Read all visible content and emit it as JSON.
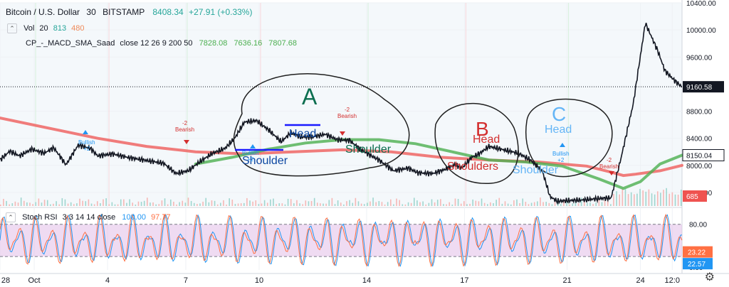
{
  "header": {
    "title": "Bitcoin / U.S. Dollar",
    "interval": "30",
    "exchange": "BITSTAMP",
    "price": "8408.34",
    "change": "+27.91 (+0.33%)"
  },
  "volume_legend": {
    "label": "Vol",
    "period": "20",
    "v1": "813",
    "v2": "480"
  },
  "macd_legend": {
    "label": "CP_-_MACD_SMA_Saad",
    "params": "close 12 26 9 200 50",
    "v1": "7828.08",
    "v2": "7636.16",
    "v3": "7807.68"
  },
  "stoch_legend": {
    "label": "Stoch RSI",
    "params": "3 3 14 14 close",
    "k": "100.00",
    "d": "97.77"
  },
  "colors": {
    "price": "#131722",
    "green_ma": "#4caf50",
    "red_ma": "#ef5350",
    "rsi_k": "#2196f3",
    "rsi_d": "#ff7043",
    "band": "#e1bee7",
    "annot_blue": "#2196f3",
    "annot_red": "#d32f2f",
    "annot_green": "#0b6e4f"
  },
  "chart_data": {
    "type": "line",
    "x_ticks": [
      "28",
      "Oct",
      "4",
      "7",
      "10",
      "14",
      "17",
      "21",
      "24",
      "12:0"
    ],
    "y_ticks": [
      "10400.00",
      "10000.00",
      "9600.00",
      "8800.00",
      "8400.00",
      "8000.00",
      "7600.00"
    ],
    "price_badges": [
      "9160.58",
      "8150.04",
      "685"
    ],
    "ylim": [
      7400,
      10400
    ],
    "price_series": {
      "x": [
        0,
        4,
        8,
        13,
        18,
        22,
        27,
        32,
        37,
        40,
        46,
        52,
        57,
        62,
        67,
        72,
        77,
        82,
        87,
        92,
        96,
        100,
        105,
        110,
        115,
        119,
        123,
        128,
        133,
        138,
        143,
        147,
        150,
        155,
        161,
        167,
        171,
        177,
        182,
        186,
        189,
        193,
        196,
        200,
        206,
        212,
        217,
        222,
        225,
        228,
        232,
        239,
        245,
        250,
        254,
        259,
        264,
        269,
        272,
        276,
        279
      ],
      "y": [
        8080,
        8210,
        8140,
        8240,
        8180,
        8260,
        8010,
        8300,
        8250,
        8140,
        8170,
        8120,
        8090,
        8060,
        8030,
        7880,
        7920,
        8060,
        8180,
        8250,
        8400,
        8640,
        8660,
        8520,
        8350,
        8480,
        8420,
        8420,
        8460,
        8380,
        8370,
        8250,
        8180,
        8080,
        7920,
        7960,
        7890,
        7880,
        7940,
        8010,
        7960,
        8120,
        8170,
        8280,
        8230,
        8180,
        8080,
        7900,
        7540,
        7470,
        7480,
        7490,
        7510,
        7520,
        8100,
        8900,
        10100,
        9700,
        9400,
        9250,
        9160
      ]
    },
    "red_ma": {
      "x": [
        0,
        20,
        40,
        60,
        80,
        100,
        120,
        140,
        160,
        180,
        200,
        220,
        240,
        250,
        255,
        260,
        270,
        279
      ],
      "y": [
        8700,
        8550,
        8400,
        8280,
        8200,
        8170,
        8200,
        8230,
        8200,
        8120,
        8080,
        8050,
        7990,
        7900,
        7850,
        7870,
        7920,
        8000
      ]
    },
    "green_ma": {
      "x": [
        80,
        95,
        110,
        125,
        140,
        155,
        170,
        185,
        200,
        215,
        230,
        245,
        255,
        262,
        270,
        279
      ],
      "y": [
        8020,
        8120,
        8240,
        8330,
        8380,
        8380,
        8320,
        8200,
        8080,
        8050,
        7990,
        7800,
        7660,
        7760,
        8020,
        8150
      ]
    },
    "stoch_ylim": [
      -5,
      110
    ],
    "stoch_ticks": [
      "80.00",
      "0.00"
    ],
    "stoch_badges": [
      "23.22",
      "22.57"
    ],
    "stoch_band": [
      20,
      80
    ]
  },
  "annotations": [
    {
      "id": "label-a",
      "text": "A"
    },
    {
      "id": "label-head-a",
      "text": "Head"
    },
    {
      "id": "label-shoulder-a1",
      "text": "Shoulder"
    },
    {
      "id": "label-shoulder-a2",
      "text": "Shoulder"
    },
    {
      "id": "label-b",
      "text": "B"
    },
    {
      "id": "label-head-b",
      "text": "Head"
    },
    {
      "id": "label-shoulders-b",
      "text": "Shoulders"
    },
    {
      "id": "label-c",
      "text": "C"
    },
    {
      "id": "label-head-c",
      "text": "Head"
    },
    {
      "id": "label-shoulder-c",
      "text": "Shoulder"
    }
  ],
  "signals": [
    {
      "text": "Bullish",
      "sub": "+2"
    },
    {
      "text": "Bearish",
      "sub": "-2"
    },
    {
      "text": "Bullish",
      "sub": "+2"
    },
    {
      "text": "Bearish",
      "sub": "-2"
    },
    {
      "text": "Bullish",
      "sub": "+2"
    },
    {
      "text": "Bearish",
      "sub": "-2"
    }
  ]
}
